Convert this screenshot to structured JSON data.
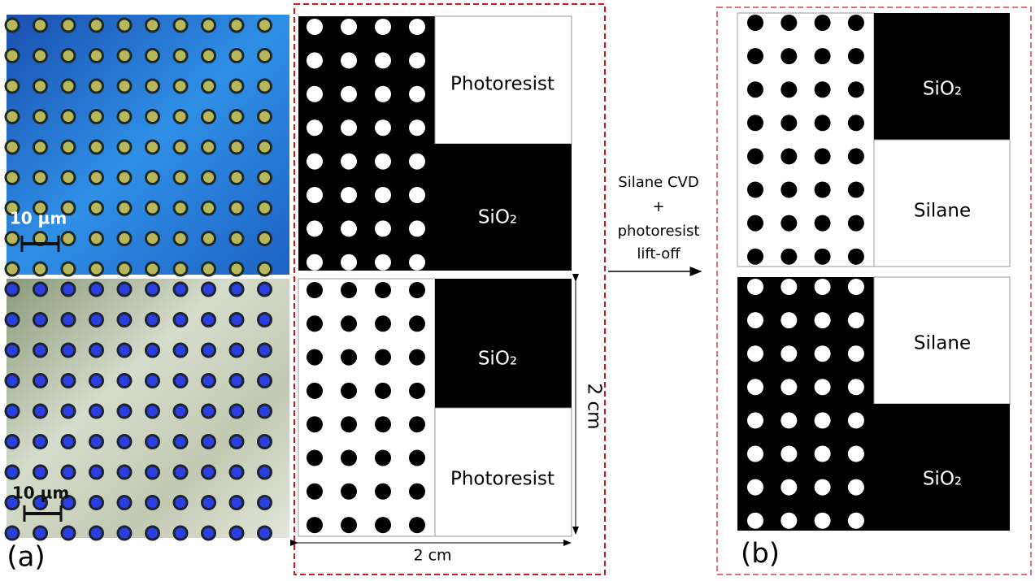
{
  "micrographs": {
    "scale_top": "10 µm",
    "scale_bottom": "10 µm"
  },
  "panel_a": {
    "label": "(a)",
    "top_white": "Photoresist",
    "top_black": "SiO₂",
    "bottom_black": "SiO₂",
    "bottom_white": "Photoresist",
    "height_label": "2 cm",
    "width_label": "2 cm"
  },
  "process": {
    "lines": [
      "Silane CVD",
      "+",
      "photoresist",
      "lift-off"
    ]
  },
  "panel_b": {
    "label": "(b)",
    "top_black": "SiO₂",
    "top_white": "Silane",
    "bottom_white": "Silane",
    "bottom_black": "SiO₂"
  }
}
